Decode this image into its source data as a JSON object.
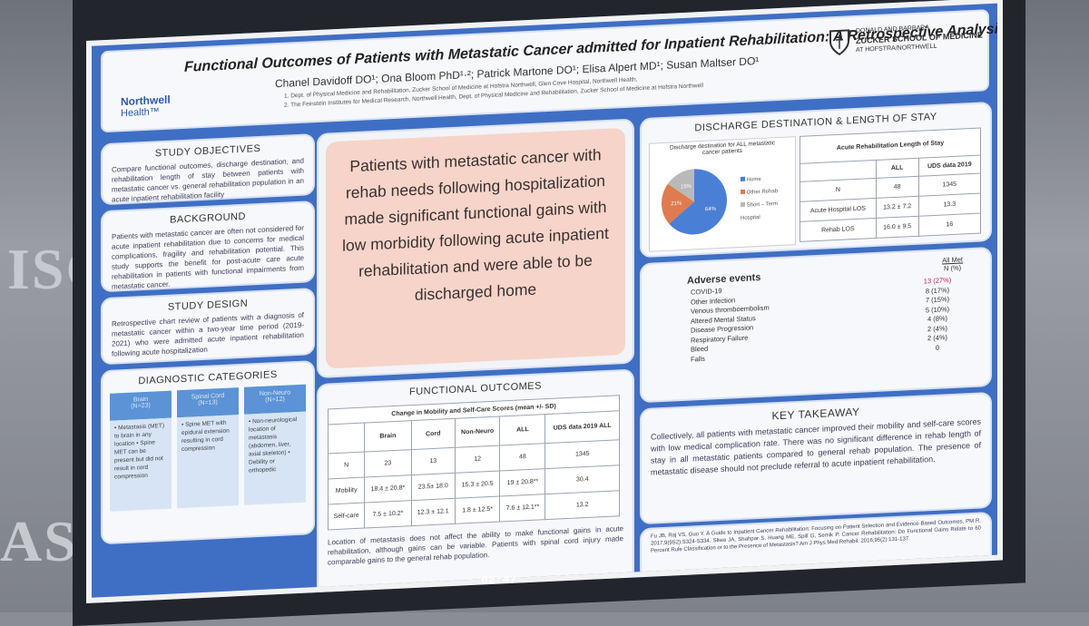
{
  "poster": {
    "title": "Functional Outcomes of Patients with Metastatic Cancer admitted for Inpatient Rehabilitation: A Retrospective Analysis",
    "authors": "Chanel Davidoff DO¹; Ona Bloom PhD¹·²; Patrick Martone DO¹; Elisa Alpert MD¹; Susan Maltser DO¹",
    "affiliation_1": "1. Dept. of Physical Medicine and Rehabilitation, Zucker School of Medicine at Hofstra Northwell, Glen Cove Hospital, Northwell Health,",
    "affiliation_2": "2. The Feinstein Institutes for Medical Research, Northwell Health, Dept. of Physical Medicine and Rehabilitation, Zucker School of Medicine at Hofstra Northwell",
    "logo_left_line1": "Northwell",
    "logo_left_line2": "Health™",
    "logo_right_line1": "Donald and Barbara",
    "logo_right_line2": "Zucker School of Medicine",
    "logo_right_line3": "at Hofstra/Northwell"
  },
  "study_objectives": {
    "heading": "STUDY OBJECTIVES",
    "text": "Compare functional outcomes, discharge destination, and rehabilitation length of stay between patients with metastatic cancer vs. general rehabilitation population in an acute inpatient rehabilitation facility"
  },
  "background": {
    "heading": "BACKGROUND",
    "text": "Patients with metastatic cancer are often not considered for acute inpatient rehabilitation due to concerns for medical complications, fragility and rehabilitation potential. This study supports the benefit for post-acute care acute rehabilitation in patients with functional impairments from metastatic cancer."
  },
  "study_design": {
    "heading": "STUDY DESIGN",
    "text": "Retrospective chart review of patients with a diagnosis of metastatic cancer within a two-year time period (2019-2021) who were admitted acute inpatient rehabilitation following acute hospitalization"
  },
  "diagnostic_categories": {
    "heading": "DIAGNOSTIC CATEGORIES",
    "tiles": [
      {
        "title": "Brain",
        "count": "(N=23)",
        "text": "• Metastasis (MET) to brain in any location • Spine MET can be present but did not result in cord compression"
      },
      {
        "title": "Spinal Cord",
        "count": "(N=13)",
        "text": "• Spine MET with epidural extension resulting in cord compression"
      },
      {
        "title": "Non-Neuro",
        "count": "(N=12)",
        "text": "• Non-neurological location of metastasis (abdomen, liver, axial skeleton) • Debility or orthopedic"
      }
    ]
  },
  "key_message": {
    "text": "Patients with metastatic cancer with rehab needs following hospitalization made significant functional gains with low morbidity following acute inpatient rehabilitation and were able to be discharged home"
  },
  "functional_outcomes": {
    "heading": "FUNCTIONAL OUTCOMES",
    "table_title": "Change in Mobility and Self-Care Scores (mean +/- SD)",
    "columns": [
      "",
      "Brain",
      "Cord",
      "Non-Neuro",
      "ALL",
      "UDS data 2019 ALL"
    ],
    "rows": [
      [
        "N",
        "23",
        "13",
        "12",
        "48",
        "1345"
      ],
      [
        "Mobility",
        "18.4 ± 20.8*",
        "23.5± 18.0",
        "15.3 ± 20.5",
        "19 ± 20.8**",
        "30.4"
      ],
      [
        "Self-care",
        "7.5 ± 10.2*",
        "12.3 ± 12.1",
        "1.8 ± 12.5*",
        "7.6 ± 12.1**",
        "13.2"
      ]
    ],
    "note": "Location of metastasis does not affect the ability to make functional gains in acute rehabilitation, although gains can be variable. Patients with spinal cord injury made comparable gains to the general rehab population."
  },
  "discharge": {
    "heading": "DISCHARGE DESTINATION & LENGTH OF STAY",
    "pie_title": "Discharge destination for ALL metastatic cancer patients",
    "legend": [
      "Home",
      "Other Rehab",
      "Short – Term Hospital"
    ],
    "pie_labels": [
      "64%",
      "21%",
      "15%"
    ],
    "pie_values": [
      64,
      21,
      15
    ],
    "pie_colors": [
      "#4a7fd6",
      "#e07a4f",
      "#b9b9b9"
    ],
    "los_title": "Acute Rehabilitation Length of Stay",
    "los_columns": [
      "",
      "ALL",
      "UDS data 2019"
    ],
    "los_rows": [
      [
        "N",
        "48",
        "1345"
      ],
      [
        "Acute Hospital LOS",
        "13.2 ± 7.2",
        "13.3"
      ],
      [
        "Rehab LOS",
        "16.0 ± 9.5",
        "16"
      ]
    ]
  },
  "adverse_events": {
    "heading": "Adverse events",
    "col_head_1": "All Met",
    "col_head_2": "N (%)",
    "rows": [
      [
        "COVID-19",
        "13 (27%)"
      ],
      [
        "Other Infection",
        "8 (17%)"
      ],
      [
        "Venous thromboembolism",
        "7 (15%)"
      ],
      [
        "Altered Mental Status",
        "5 (10%)"
      ],
      [
        "Disease Progression",
        "4 (8%)"
      ],
      [
        "Respiratory Failure",
        "2 (4%)"
      ],
      [
        "Bleed",
        "2 (4%)"
      ],
      [
        "Falls",
        "0"
      ]
    ]
  },
  "key_takeaway": {
    "heading": "KEY TAKEAWAY",
    "text": "Collectively, all patients with metastatic cancer improved their mobility and self-care scores with low medical complication rate. There was no significant difference in rehab length of stay in all metastatic patients compared to general rehab population. The presence of metastatic disease should not preclude referral to acute inpatient rehabilitation."
  },
  "references": {
    "text": "Fu JB, Raj VS, Guo Y. A Guide to Inpatient Cancer Rehabilitation: Focusing on Patient Selection and Evidence-Based Outcomes. PM R. 2017;9(9S2):S324-S334. Sliwa JA, Shahpar S, Huang ME, Spill G, Semik P. Cancer Rehabilitation: Do Functional Gains Relate to 60 Percent Rule Classification or to the Presence of Metastasis? Am J Phys Med Rehabil. 2016;95(2):131-137."
  },
  "background_text": {
    "left_1": "ISC",
    "left_2": "ASC"
  },
  "video_time": "02:47"
}
